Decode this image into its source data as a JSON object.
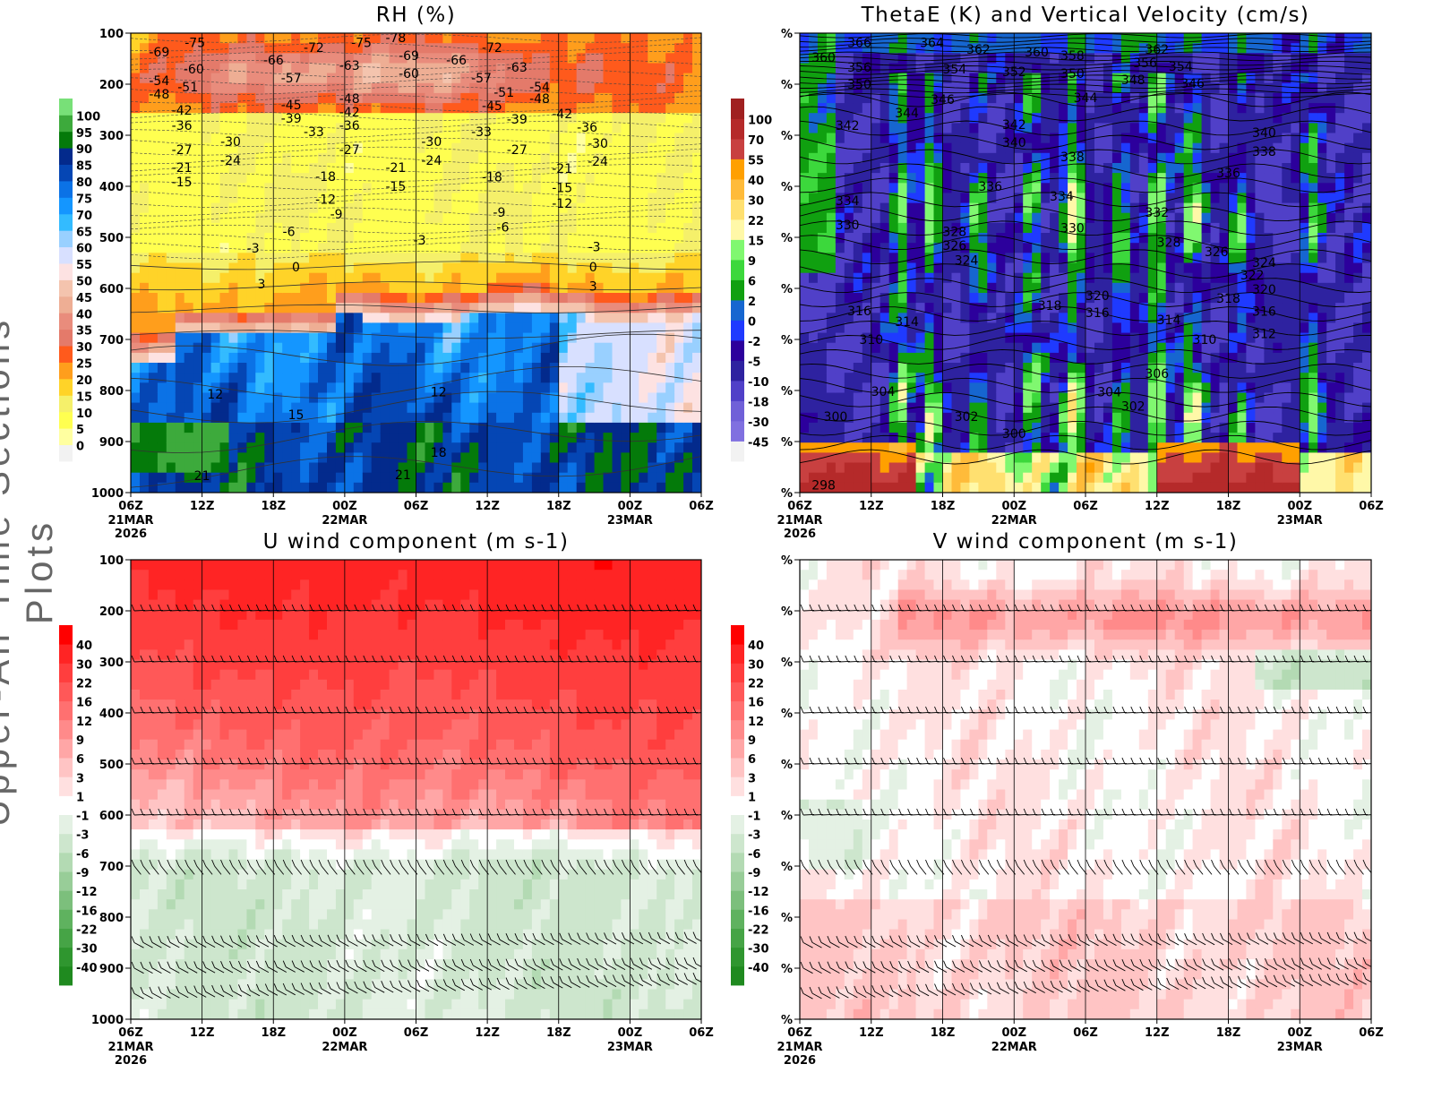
{
  "page": {
    "side_title": "Upper-Air Time Sections Plots"
  },
  "chart_data": [
    {
      "type": "heatmap",
      "id": "rh",
      "title": "RH (%)",
      "xlabel": "",
      "ylabel": "",
      "x_ticks": [
        "06Z",
        "12Z",
        "18Z",
        "00Z",
        "06Z",
        "12Z",
        "18Z",
        "00Z",
        "06Z"
      ],
      "x_date_labels": [
        {
          "tick": 0,
          "lines": [
            "21MAR",
            "2026"
          ]
        },
        {
          "tick": 3,
          "lines": [
            "22MAR"
          ]
        },
        {
          "tick": 7,
          "lines": [
            "23MAR"
          ]
        }
      ],
      "x_range_hours": [
        0,
        48
      ],
      "y_ticks": [
        "100",
        "200",
        "300",
        "400",
        "500",
        "600",
        "700",
        "800",
        "900",
        "1000"
      ],
      "y_range_hPa": [
        100,
        1000
      ],
      "colorbar": {
        "levels": [
          0,
          5,
          10,
          15,
          20,
          25,
          30,
          35,
          40,
          45,
          50,
          55,
          60,
          65,
          70,
          75,
          80,
          85,
          90,
          95,
          100
        ],
        "colors": [
          "#f2f2f2",
          "#ffffa0",
          "#ffff50",
          "#f5f06a",
          "#ffd328",
          "#ff9e1c",
          "#ff5a1c",
          "#e47a6a",
          "#e98c7c",
          "#eeae94",
          "#f4c4ae",
          "#fde2e2",
          "#d8e0ff",
          "#99d0ff",
          "#33bbff",
          "#1496ff",
          "#0b72e6",
          "#0546b4",
          "#032a8c",
          "#047a0a",
          "#3daa3c",
          "#78e078"
        ]
      },
      "contour_labels": [
        [
          2.4,
          137,
          "-69"
        ],
        [
          5.4,
          118,
          "-75"
        ],
        [
          15.4,
          128,
          "-72"
        ],
        [
          19.4,
          118,
          "-75"
        ],
        [
          22.3,
          109,
          "-78"
        ],
        [
          30.4,
          128,
          "-72"
        ],
        [
          12,
          153,
          "-66"
        ],
        [
          23.4,
          144,
          "-69"
        ],
        [
          27.4,
          153,
          "-66"
        ],
        [
          5.3,
          170,
          "-60"
        ],
        [
          18.4,
          163,
          "-63"
        ],
        [
          23.4,
          179,
          "-60"
        ],
        [
          32.5,
          167,
          "-63"
        ],
        [
          2.4,
          193,
          "-54"
        ],
        [
          4.8,
          205,
          "-51"
        ],
        [
          2.4,
          219,
          "-48"
        ],
        [
          13.5,
          188,
          "-57"
        ],
        [
          29.5,
          188,
          "-57"
        ],
        [
          31.4,
          216,
          "-51"
        ],
        [
          34.4,
          205,
          "-54"
        ],
        [
          34.4,
          228,
          "-48"
        ],
        [
          18.4,
          228,
          "-48"
        ],
        [
          13.5,
          240,
          "-45"
        ],
        [
          18.4,
          254,
          "-42"
        ],
        [
          30.4,
          242,
          "-45"
        ],
        [
          36.3,
          258,
          "-42"
        ],
        [
          13.5,
          267,
          "-39"
        ],
        [
          18.4,
          281,
          "-36"
        ],
        [
          32.5,
          268,
          "-39"
        ],
        [
          4.3,
          251,
          "-42"
        ],
        [
          4.3,
          281,
          "-36"
        ],
        [
          15.4,
          293,
          "-33"
        ],
        [
          29.5,
          293,
          "-33"
        ],
        [
          38.4,
          284,
          "-36"
        ],
        [
          8.4,
          312,
          "-30"
        ],
        [
          4.3,
          328,
          "-27"
        ],
        [
          18.4,
          328,
          "-27"
        ],
        [
          25.3,
          312,
          "-30"
        ],
        [
          32.5,
          328,
          "-27"
        ],
        [
          39.3,
          316,
          "-30"
        ],
        [
          8.4,
          349,
          "-24"
        ],
        [
          4.3,
          363,
          "-21"
        ],
        [
          25.3,
          349,
          "-24"
        ],
        [
          39.3,
          351,
          "-24"
        ],
        [
          22.3,
          363,
          "-21"
        ],
        [
          36.3,
          365,
          "-21"
        ],
        [
          16.4,
          381,
          "-18"
        ],
        [
          30.4,
          382,
          "-18"
        ],
        [
          4.3,
          391,
          "-15"
        ],
        [
          22.3,
          400,
          "-15"
        ],
        [
          36.3,
          403,
          "-15"
        ],
        [
          16.4,
          425,
          "-12"
        ],
        [
          36.3,
          433,
          "-12"
        ],
        [
          17.3,
          454,
          "-9"
        ],
        [
          31,
          451,
          "-9"
        ],
        [
          13.3,
          489,
          "-6"
        ],
        [
          31.3,
          480,
          "-6"
        ],
        [
          10.3,
          521,
          "-3"
        ],
        [
          24.3,
          505,
          "-3"
        ],
        [
          39,
          518,
          "-3"
        ],
        [
          13.9,
          558,
          "0"
        ],
        [
          38.9,
          558,
          "0"
        ],
        [
          11,
          591,
          "3"
        ],
        [
          38.9,
          596,
          "3"
        ],
        [
          7.1,
          807,
          "12"
        ],
        [
          13.9,
          847,
          "15"
        ],
        [
          25.9,
          803,
          "12"
        ],
        [
          25.9,
          921,
          "18"
        ],
        [
          6,
          967,
          "21"
        ],
        [
          22.9,
          965,
          "21"
        ]
      ]
    },
    {
      "type": "heatmap",
      "id": "thetae",
      "title": "ThetaE (K) and Vertical Velocity (cm/s)",
      "xlabel": "",
      "ylabel": "",
      "x_ticks": [
        "06Z",
        "12Z",
        "18Z",
        "00Z",
        "06Z",
        "12Z",
        "18Z",
        "00Z",
        "06Z"
      ],
      "x_date_labels": [
        {
          "tick": 0,
          "lines": [
            "21MAR",
            "2026"
          ]
        },
        {
          "tick": 3,
          "lines": [
            "22MAR"
          ]
        },
        {
          "tick": 7,
          "lines": [
            "23MAR"
          ]
        }
      ],
      "x_range_hours": [
        0,
        48
      ],
      "y_ticks": [
        "%",
        "%",
        "%",
        "%",
        "%",
        "%",
        "%",
        "%",
        "%",
        "%"
      ],
      "y_range_hPa": [
        100,
        1000
      ],
      "colorbar": {
        "levels": [
          -45,
          -30,
          -18,
          -10,
          -5,
          -2,
          0,
          2,
          6,
          9,
          15,
          22,
          30,
          40,
          55,
          70,
          100
        ],
        "colors": [
          "#f2f2f2",
          "#8070e0",
          "#7060d8",
          "#5040c8",
          "#2e22a0",
          "#2c009c",
          "#1f3aff",
          "#1666d0",
          "#10a010",
          "#3cd83c",
          "#80f870",
          "#fff8a8",
          "#ffe070",
          "#ffbb3a",
          "#ffa000",
          "#c84040",
          "#b52a2a",
          "#a02020"
        ]
      },
      "contour_labels": [
        [
          5,
          118,
          "366"
        ],
        [
          11.1,
          118,
          "364"
        ],
        [
          15,
          132,
          "362"
        ],
        [
          19.9,
          137,
          "360"
        ],
        [
          22.9,
          144,
          "358"
        ],
        [
          30,
          132,
          "362"
        ],
        [
          2,
          147,
          "360"
        ],
        [
          5,
          167,
          "356"
        ],
        [
          13,
          170,
          "354"
        ],
        [
          18,
          175,
          "352"
        ],
        [
          22.9,
          179,
          "350"
        ],
        [
          29,
          158,
          "356"
        ],
        [
          32,
          165,
          "354"
        ],
        [
          28,
          191,
          "348"
        ],
        [
          33,
          198,
          "346"
        ],
        [
          5,
          200,
          "350"
        ],
        [
          9,
          256,
          "344"
        ],
        [
          12,
          230,
          "346"
        ],
        [
          24,
          226,
          "344"
        ],
        [
          4,
          281,
          "342"
        ],
        [
          18,
          279,
          "342"
        ],
        [
          18,
          314,
          "340"
        ],
        [
          39,
          295,
          "340"
        ],
        [
          22.9,
          342,
          "338"
        ],
        [
          39,
          332,
          "338"
        ],
        [
          36,
          374,
          "336"
        ],
        [
          16,
          400,
          "336"
        ],
        [
          4,
          428,
          "334"
        ],
        [
          22,
          419,
          "334"
        ],
        [
          30,
          451,
          "332"
        ],
        [
          4,
          475,
          "330"
        ],
        [
          22.9,
          482,
          "330"
        ],
        [
          13,
          489,
          "328"
        ],
        [
          13,
          516,
          "326"
        ],
        [
          14,
          545,
          "324"
        ],
        [
          31,
          510,
          "328"
        ],
        [
          35,
          528,
          "326"
        ],
        [
          39,
          549,
          "324"
        ],
        [
          38,
          574,
          "322"
        ],
        [
          39,
          602,
          "320"
        ],
        [
          25,
          614,
          "320"
        ],
        [
          25,
          647,
          "316"
        ],
        [
          21,
          633,
          "318"
        ],
        [
          36,
          619,
          "318"
        ],
        [
          39,
          645,
          "316"
        ],
        [
          5,
          644,
          "316"
        ],
        [
          9,
          665,
          "314"
        ],
        [
          31,
          661,
          "314"
        ],
        [
          39,
          689,
          "312"
        ],
        [
          34,
          700,
          "310"
        ],
        [
          6,
          700,
          "310"
        ],
        [
          30,
          767,
          "306"
        ],
        [
          7,
          802,
          "304"
        ],
        [
          26,
          803,
          "304"
        ],
        [
          14,
          851,
          "302"
        ],
        [
          28,
          831,
          "302"
        ],
        [
          3,
          851,
          "300"
        ],
        [
          18,
          884,
          "300"
        ],
        [
          2,
          985,
          "298"
        ]
      ]
    },
    {
      "type": "heatmap",
      "id": "uwind",
      "title": "U wind component (m s-1)",
      "xlabel": "",
      "ylabel": "",
      "x_ticks": [
        "06Z",
        "12Z",
        "18Z",
        "00Z",
        "06Z",
        "12Z",
        "18Z",
        "00Z",
        "06Z"
      ],
      "x_date_labels": [
        {
          "tick": 0,
          "lines": [
            "21MAR",
            "2026"
          ]
        },
        {
          "tick": 3,
          "lines": [
            "22MAR"
          ]
        },
        {
          "tick": 7,
          "lines": [
            "23MAR"
          ]
        }
      ],
      "x_range_hours": [
        0,
        48
      ],
      "y_ticks": [
        "100",
        "200",
        "300",
        "400",
        "500",
        "600",
        "700",
        "800",
        "900",
        "1000"
      ],
      "y_range_hPa": [
        100,
        1000
      ],
      "colorbar": {
        "levels": [
          -40,
          -30,
          -22,
          -16,
          -12,
          -9,
          -6,
          -3,
          -1,
          1,
          3,
          6,
          9,
          12,
          16,
          22,
          30,
          40
        ],
        "colors": [
          "#1f8a1f",
          "#2f962f",
          "#46a446",
          "#5fb25f",
          "#7cbf7c",
          "#98cd98",
          "#b3dab3",
          "#cde6cd",
          "#e4f1e4",
          "#ffffff",
          "#ffe0e0",
          "#ffc4c4",
          "#ffa6a6",
          "#ff8a8a",
          "#ff7070",
          "#ff5858",
          "#ff3e3e",
          "#ff2424",
          "#ff0000"
        ]
      },
      "barb_levels_hPa": [
        200,
        300,
        400,
        500,
        600,
        700,
        850,
        900,
        950
      ]
    },
    {
      "type": "heatmap",
      "id": "vwind",
      "title": "V wind component (m s-1)",
      "xlabel": "",
      "ylabel": "",
      "x_ticks": [
        "06Z",
        "12Z",
        "18Z",
        "00Z",
        "06Z",
        "12Z",
        "18Z",
        "00Z",
        "06Z"
      ],
      "x_date_labels": [
        {
          "tick": 0,
          "lines": [
            "21MAR",
            "2026"
          ]
        },
        {
          "tick": 3,
          "lines": [
            "22MAR"
          ]
        },
        {
          "tick": 7,
          "lines": [
            "23MAR"
          ]
        }
      ],
      "x_range_hours": [
        0,
        48
      ],
      "y_ticks": [
        "%",
        "%",
        "%",
        "%",
        "%",
        "%",
        "%",
        "%",
        "%",
        "%"
      ],
      "y_range_hPa": [
        100,
        1000
      ],
      "colorbar": {
        "levels": [
          -40,
          -30,
          -22,
          -16,
          -12,
          -9,
          -6,
          -3,
          -1,
          1,
          3,
          6,
          9,
          12,
          16,
          22,
          30,
          40
        ],
        "colors": [
          "#1f8a1f",
          "#2f962f",
          "#46a446",
          "#5fb25f",
          "#7cbf7c",
          "#98cd98",
          "#b3dab3",
          "#cde6cd",
          "#e4f1e4",
          "#ffffff",
          "#ffe0e0",
          "#ffc4c4",
          "#ffa6a6",
          "#ff8a8a",
          "#ff7070",
          "#ff5858",
          "#ff3e3e",
          "#ff2424",
          "#ff0000"
        ]
      },
      "barb_levels_hPa": [
        200,
        300,
        400,
        500,
        600,
        700,
        850,
        900,
        950
      ]
    }
  ]
}
